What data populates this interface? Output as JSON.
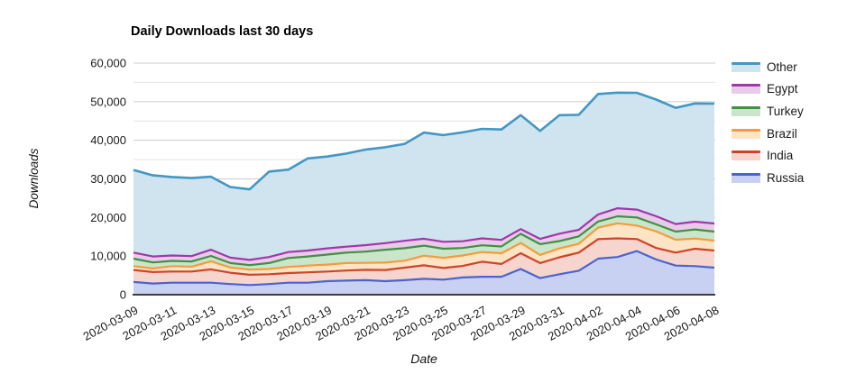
{
  "title": "Daily Downloads last 30 days",
  "axes": {
    "x_title": "Date",
    "y_title": "Downloads",
    "y_tick_labels": [
      "0",
      "10,000",
      "20,000",
      "30,000",
      "40,000",
      "50,000",
      "60,000"
    ]
  },
  "colors": {
    "gridline_major": "#CCCCCC",
    "gridline_minor": "#E3E3E3",
    "baseline": "#3D3D3D",
    "tick_text": "#1A1A1A"
  },
  "chart_data": {
    "type": "area",
    "stacked": true,
    "title": "Daily Downloads last 30 days",
    "xlabel": "Date",
    "ylabel": "Downloads",
    "ylim": [
      0,
      60000
    ],
    "y_major_step": 10000,
    "y_minor_step": 5000,
    "grid": true,
    "legend_position": "right",
    "x_tick_every": 2,
    "x": [
      "2020-03-09",
      "2020-03-10",
      "2020-03-11",
      "2020-03-12",
      "2020-03-13",
      "2020-03-14",
      "2020-03-15",
      "2020-03-16",
      "2020-03-17",
      "2020-03-18",
      "2020-03-19",
      "2020-03-20",
      "2020-03-21",
      "2020-03-22",
      "2020-03-23",
      "2020-03-24",
      "2020-03-25",
      "2020-03-26",
      "2020-03-27",
      "2020-03-28",
      "2020-03-29",
      "2020-03-30",
      "2020-03-31",
      "2020-04-01",
      "2020-04-02",
      "2020-04-03",
      "2020-04-04",
      "2020-04-05",
      "2020-04-06",
      "2020-04-07",
      "2020-04-08"
    ],
    "series": [
      {
        "name": "Russia",
        "line": "#4A63D0",
        "fill": "#C9D1F2",
        "values": [
          3300,
          2900,
          3100,
          3100,
          3100,
          2750,
          2500,
          2750,
          3100,
          3100,
          3500,
          3650,
          3750,
          3500,
          3750,
          4100,
          3900,
          4450,
          4650,
          4650,
          6650,
          4300,
          5300,
          6200,
          9350,
          9750,
          11300,
          9100,
          7550,
          7400,
          7000
        ]
      },
      {
        "name": "India",
        "line": "#CE442B",
        "fill": "#F5D5CD",
        "values": [
          3100,
          2950,
          2900,
          2900,
          3450,
          2950,
          2650,
          2550,
          2500,
          2700,
          2500,
          2600,
          2700,
          2900,
          3250,
          3500,
          3000,
          3000,
          3900,
          3300,
          4100,
          3900,
          4400,
          4700,
          5050,
          4850,
          3100,
          3000,
          3350,
          4500,
          4450
        ]
      },
      {
        "name": "Brazil",
        "line": "#F39C3D",
        "fill": "#FCE4C5",
        "values": [
          1000,
          950,
          1400,
          1250,
          2100,
          1350,
          1350,
          1350,
          1600,
          1750,
          1800,
          1950,
          1800,
          1900,
          1800,
          2500,
          2650,
          2700,
          2500,
          2800,
          2650,
          2100,
          2300,
          2300,
          3000,
          3900,
          3500,
          4300,
          3350,
          2650,
          2550
        ]
      },
      {
        "name": "Turkey",
        "line": "#3F9142",
        "fill": "#CBE5CB",
        "values": [
          1950,
          1550,
          1350,
          1350,
          1400,
          1150,
          1150,
          1550,
          2300,
          2350,
          2600,
          2700,
          2900,
          3350,
          3250,
          2600,
          2350,
          1950,
          1750,
          1750,
          2350,
          2800,
          1900,
          1900,
          1550,
          1800,
          2100,
          1800,
          2100,
          2350,
          2350
        ]
      },
      {
        "name": "Egypt",
        "line": "#A138A8",
        "fill": "#E7CBE9",
        "values": [
          1550,
          1550,
          1400,
          1400,
          1600,
          1400,
          1350,
          1550,
          1550,
          1550,
          1600,
          1550,
          1700,
          1700,
          1900,
          1800,
          1800,
          1750,
          1800,
          1700,
          1250,
          1350,
          1900,
          1700,
          1850,
          2100,
          2050,
          2100,
          1950,
          2000,
          2100
        ]
      },
      {
        "name": "Other",
        "line": "#4397C3",
        "fill": "#CFE4EF",
        "values": [
          21400,
          21000,
          20350,
          20200,
          18900,
          18300,
          18300,
          22150,
          21350,
          23850,
          23800,
          24100,
          24750,
          24850,
          25100,
          27500,
          27650,
          28200,
          28350,
          28600,
          29500,
          28000,
          30700,
          29800,
          31200,
          29950,
          30250,
          30250,
          30100,
          30650,
          31050
        ]
      }
    ]
  }
}
